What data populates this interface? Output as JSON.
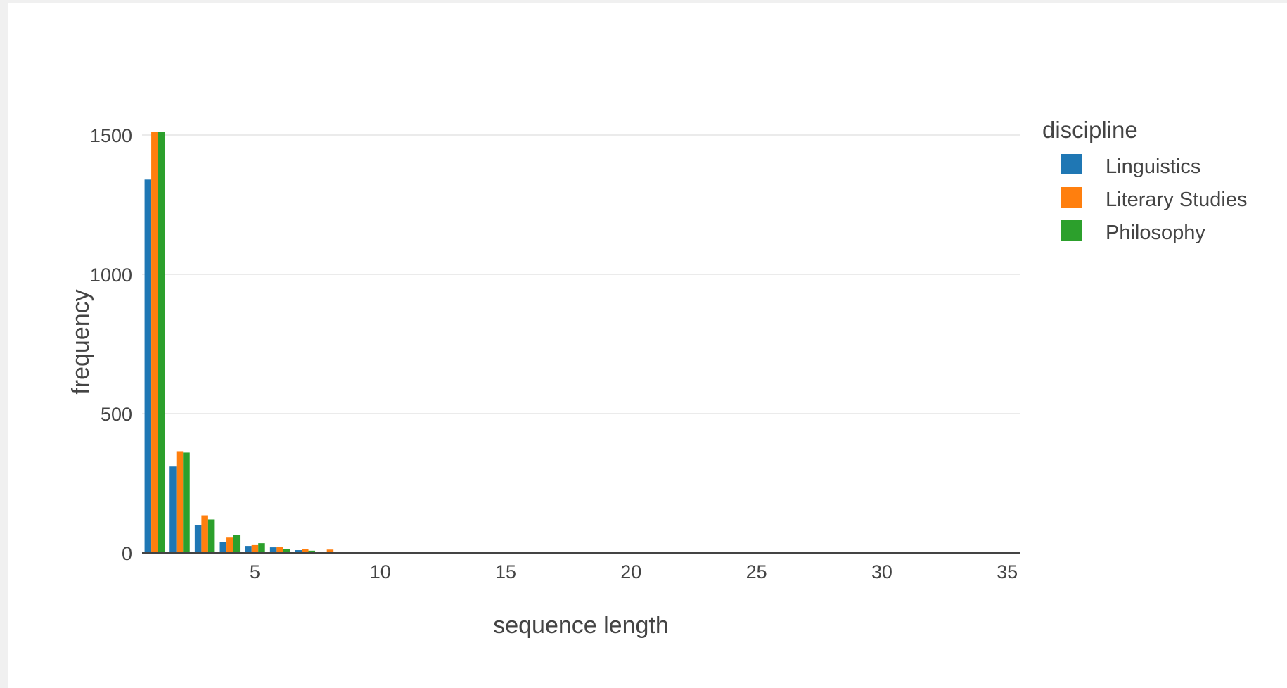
{
  "chart_data": {
    "type": "bar",
    "xlabel": "sequence length",
    "ylabel": "frequency",
    "xlim": [
      0.5,
      35.5
    ],
    "ylim": [
      0,
      1515
    ],
    "x_ticks": [
      5,
      10,
      15,
      20,
      25,
      30,
      35
    ],
    "y_ticks": [
      0,
      500,
      1000,
      1500
    ],
    "grid": true,
    "legend_title": "discipline",
    "legend_position": "right",
    "x": [
      1,
      2,
      3,
      4,
      5,
      6,
      7,
      8,
      9,
      10,
      11,
      12,
      13,
      14,
      15,
      16,
      17,
      18,
      19,
      20,
      21,
      22,
      23,
      24,
      25,
      26,
      27,
      28,
      29,
      30,
      31,
      32,
      33,
      34,
      35
    ],
    "series": [
      {
        "name": "Linguistics",
        "color": "#1f77b4",
        "values": [
          1340,
          310,
          100,
          40,
          25,
          20,
          10,
          5,
          3,
          2,
          2,
          1,
          1,
          1,
          1,
          1,
          0,
          1,
          0,
          1,
          0,
          0,
          1,
          0,
          0,
          0,
          0,
          0,
          0,
          1,
          0,
          0,
          0,
          0,
          1
        ]
      },
      {
        "name": "Literary Studies",
        "color": "#ff7f0e",
        "values": [
          1510,
          365,
          135,
          55,
          28,
          22,
          15,
          12,
          5,
          5,
          3,
          3,
          2,
          2,
          2,
          2,
          1,
          1,
          1,
          1,
          1,
          1,
          1,
          1,
          1,
          0,
          0,
          1,
          0,
          0,
          0,
          0,
          0,
          0,
          1
        ]
      },
      {
        "name": "Philosophy",
        "color": "#2ca02c",
        "values": [
          1510,
          360,
          120,
          65,
          35,
          15,
          8,
          4,
          3,
          2,
          4,
          1,
          1,
          1,
          2,
          1,
          1,
          1,
          1,
          1,
          1,
          1,
          1,
          1,
          2,
          1,
          0,
          0,
          1,
          0,
          0,
          0,
          0,
          0,
          1
        ]
      }
    ]
  }
}
